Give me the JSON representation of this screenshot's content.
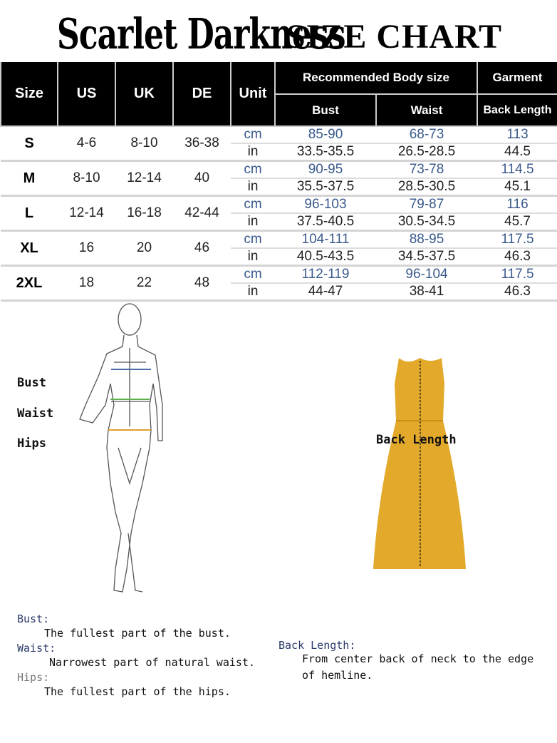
{
  "brand": "Scarlet Darkness",
  "title": "SIZE CHART",
  "headers": {
    "size": "Size",
    "us": "US",
    "uk": "UK",
    "de": "DE",
    "unit": "Unit",
    "recommended": "Recommended Body size",
    "garment": "Garment",
    "bust": "Bust",
    "waist": "Waist",
    "back_length": "Back Length"
  },
  "rows": [
    {
      "size": "S",
      "us": "4-6",
      "uk": "8-10",
      "de": "36-38",
      "cm": {
        "unit": "cm",
        "bust": "85-90",
        "waist": "68-73",
        "back": "113"
      },
      "in": {
        "unit": "in",
        "bust": "33.5-35.5",
        "waist": "26.5-28.5",
        "back": "44.5"
      }
    },
    {
      "size": "M",
      "us": "8-10",
      "uk": "12-14",
      "de": "40",
      "cm": {
        "unit": "cm",
        "bust": "90-95",
        "waist": "73-78",
        "back": "114.5"
      },
      "in": {
        "unit": "in",
        "bust": "35.5-37.5",
        "waist": "28.5-30.5",
        "back": "45.1"
      }
    },
    {
      "size": "L",
      "us": "12-14",
      "uk": "16-18",
      "de": "42-44",
      "cm": {
        "unit": "cm",
        "bust": "96-103",
        "waist": "79-87",
        "back": "116"
      },
      "in": {
        "unit": "in",
        "bust": "37.5-40.5",
        "waist": "30.5-34.5",
        "back": "45.7"
      }
    },
    {
      "size": "XL",
      "us": "16",
      "uk": "20",
      "de": "46",
      "cm": {
        "unit": "cm",
        "bust": "104-111",
        "waist": "88-95",
        "back": "117.5"
      },
      "in": {
        "unit": "in",
        "bust": "40.5-43.5",
        "waist": "34.5-37.5",
        "back": "46.3"
      }
    },
    {
      "size": "2XL",
      "us": "18",
      "uk": "22",
      "de": "48",
      "cm": {
        "unit": "cm",
        "bust": "112-119",
        "waist": "96-104",
        "back": "117.5"
      },
      "in": {
        "unit": "in",
        "bust": "44-47",
        "waist": "38-41",
        "back": "46.3"
      }
    }
  ],
  "figure_labels": {
    "bust": "Bust",
    "waist": "Waist",
    "hips": "Hips",
    "back_length": "Back Length"
  },
  "descriptions": {
    "bust_head": "Bust:",
    "bust_text": "The fullest part of the bust.",
    "waist_head": "Waist:",
    "waist_text": "Narrowest part of natural waist.",
    "hips_head": "Hips:",
    "hips_text": "The fullest part of the hips.",
    "back_head": "Back Length:",
    "back_text1": "From center back of neck to the edge",
    "back_text2": "of hemline."
  },
  "colors": {
    "header_bg": "#000000",
    "cm_text": "#3a5a8c",
    "dress": "#e3a92a"
  }
}
